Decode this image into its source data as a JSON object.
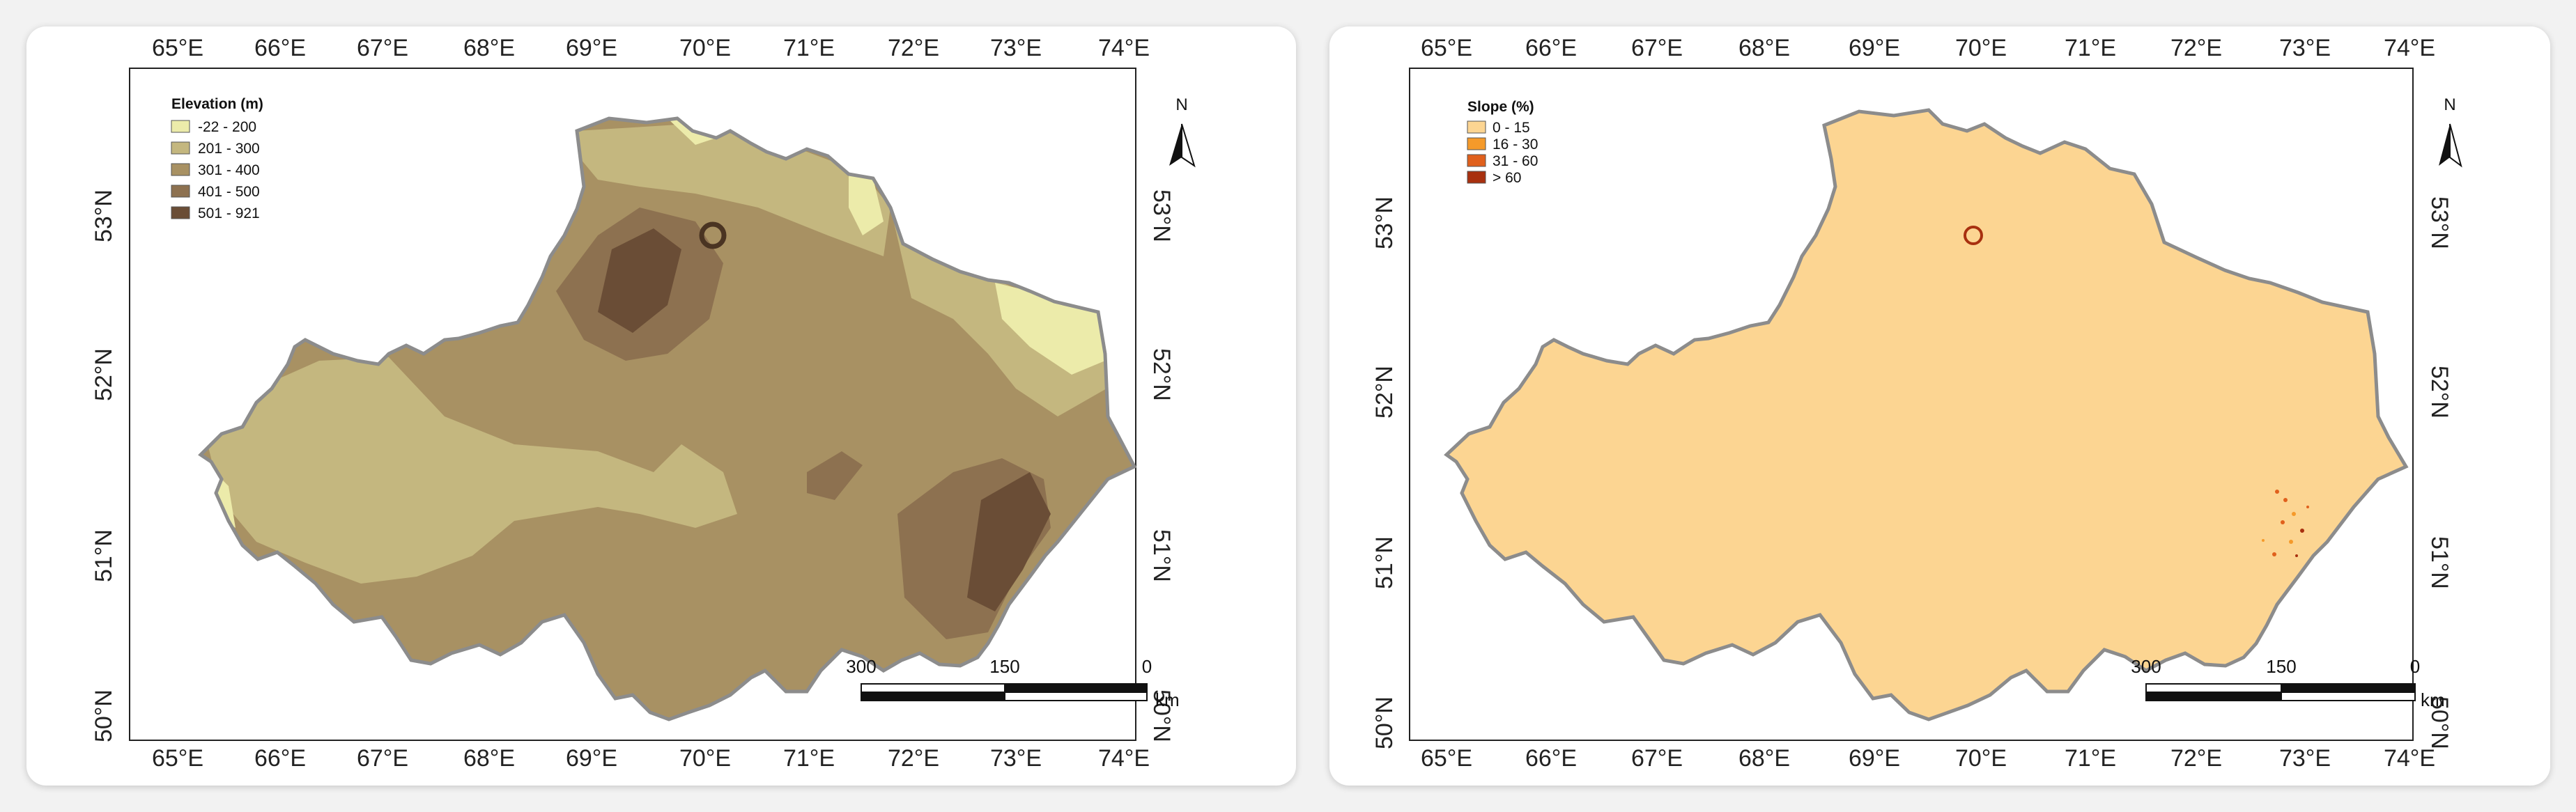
{
  "panels": [
    {
      "legend": {
        "title": "Elevation (m)",
        "items": [
          {
            "label": "-22 - 200",
            "color": "#ecebaa"
          },
          {
            "label": "201 - 300",
            "color": "#c4b77f"
          },
          {
            "label": "301 - 400",
            "color": "#a89163"
          },
          {
            "label": "401 - 500",
            "color": "#8d7150"
          },
          {
            "label": "501 - 921",
            "color": "#6a4d36"
          }
        ]
      },
      "scale": {
        "labels": [
          "300",
          "150",
          "0"
        ],
        "unit": "km"
      },
      "north": "N"
    },
    {
      "legend": {
        "title": "Slope (%)",
        "items": [
          {
            "label": "0 - 15",
            "color": "#fcd592"
          },
          {
            "label": "16 - 30",
            "color": "#f59a2a"
          },
          {
            "label": "31 - 60",
            "color": "#e0601c"
          },
          {
            "label": "> 60",
            "color": "#a8300f"
          }
        ]
      },
      "scale": {
        "labels": [
          "300",
          "150",
          "0"
        ],
        "unit": "km"
      },
      "north": "N"
    }
  ],
  "axes": {
    "lon_ticks": [
      "65°E",
      "66°E",
      "67°E",
      "68°E",
      "69°E",
      "70°E",
      "71°E",
      "72°E",
      "73°E",
      "74°E"
    ],
    "lat_ticks": [
      "53°N",
      "52°N",
      "51°N",
      "50°N"
    ]
  },
  "colors": {
    "boundary": "#8c8c8c",
    "elev_base": "#a89163",
    "slope_base": "#fcd592"
  }
}
